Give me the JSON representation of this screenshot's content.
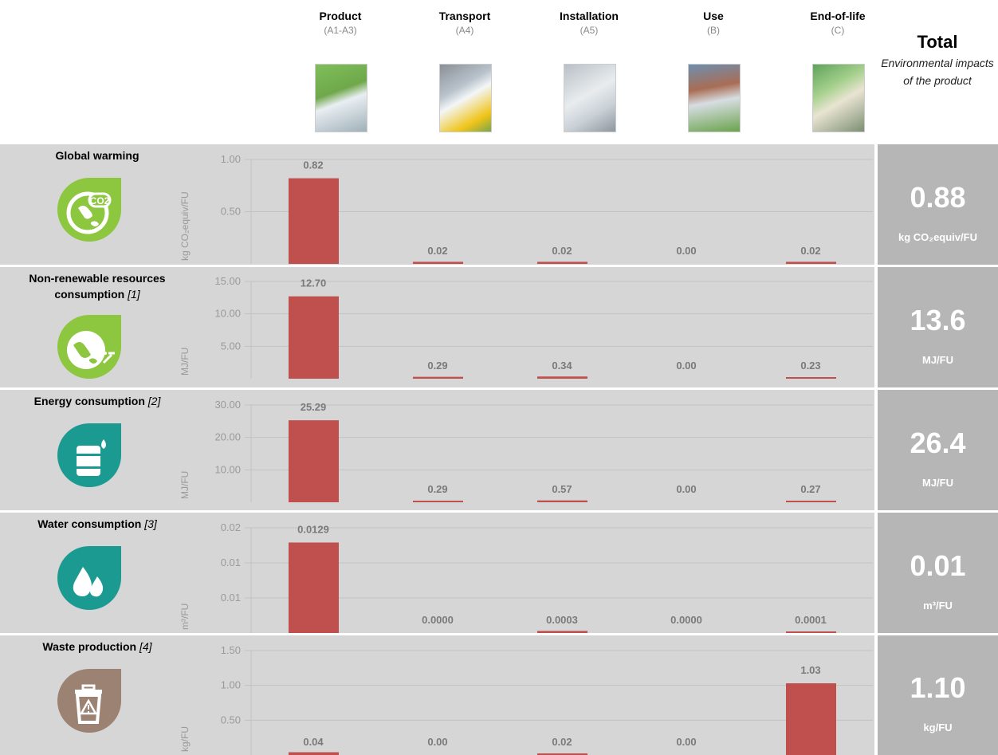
{
  "stages": [
    {
      "name": "Product",
      "code": "(A1-A3)",
      "image": "product-stage-illustration"
    },
    {
      "name": "Transport",
      "code": "(A4)",
      "image": "transport-truck-illustration"
    },
    {
      "name": "Installation",
      "code": "(A5)",
      "image": "installation-illustration"
    },
    {
      "name": "Use",
      "code": "(B)",
      "image": "house-use-illustration"
    },
    {
      "name": "End-of-life",
      "code": "(C)",
      "image": "end-of-life-illustration"
    }
  ],
  "total": {
    "title": "Total",
    "subtitle": "Environmental impacts of the product"
  },
  "colors": {
    "bar": "#c0504d",
    "panel": "#d6d6d6",
    "total_panel": "#b6b6b6",
    "green": "#8dc63f",
    "teal": "#1a9a91",
    "brown": "#9b8273"
  },
  "chart_data": [
    {
      "type": "bar",
      "title": "Global warming",
      "note": "",
      "icon": "co2-globe-icon",
      "categories": [
        "Product",
        "Transport",
        "Installation",
        "Use",
        "End-of-life"
      ],
      "values": [
        0.82,
        0.02,
        0.02,
        0.0,
        0.02
      ],
      "labels": [
        "0.82",
        "0.02",
        "0.02",
        "0.00",
        "0.02"
      ],
      "ylabel": "kg CO₂equiv/FU",
      "yticks": [
        "1.00",
        "0.50"
      ],
      "yticks_vals": [
        1.0,
        0.5
      ],
      "ylim": [
        0,
        1.0
      ],
      "grid": true,
      "total": "0.88",
      "total_unit": "kg CO₂equiv/FU"
    },
    {
      "type": "bar",
      "title": "Non-renewable resources consumption",
      "note": "[1]",
      "icon": "earth-mining-icon",
      "categories": [
        "Product",
        "Transport",
        "Installation",
        "Use",
        "End-of-life"
      ],
      "values": [
        12.7,
        0.29,
        0.34,
        0.0,
        0.23
      ],
      "labels": [
        "12.70",
        "0.29",
        "0.34",
        "0.00",
        "0.23"
      ],
      "ylabel": "MJ/FU",
      "yticks": [
        "15.00",
        "10.00",
        "5.00"
      ],
      "yticks_vals": [
        15,
        10,
        5
      ],
      "ylim": [
        0,
        15
      ],
      "grid": true,
      "total": "13.6",
      "total_unit": "MJ/FU"
    },
    {
      "type": "bar",
      "title": "Energy consumption",
      "note": "[2]",
      "icon": "fuel-barrel-icon",
      "categories": [
        "Product",
        "Transport",
        "Installation",
        "Use",
        "End-of-life"
      ],
      "values": [
        25.29,
        0.29,
        0.57,
        0.0,
        0.27
      ],
      "labels": [
        "25.29",
        "0.29",
        "0.57",
        "0.00",
        "0.27"
      ],
      "ylabel": "MJ/FU",
      "yticks": [
        "30.00",
        "20.00",
        "10.00"
      ],
      "yticks_vals": [
        30,
        20,
        10
      ],
      "ylim": [
        0,
        30
      ],
      "grid": true,
      "total": "26.4",
      "total_unit": "MJ/FU"
    },
    {
      "type": "bar",
      "title": "Water consumption",
      "note": "[3]",
      "icon": "water-drops-icon",
      "categories": [
        "Product",
        "Transport",
        "Installation",
        "Use",
        "End-of-life"
      ],
      "values": [
        0.0129,
        0.0,
        0.0003,
        0.0,
        0.0001
      ],
      "labels": [
        "0.0129",
        "0.0000",
        "0.0003",
        "0.0000",
        "0.0001"
      ],
      "ylabel": "m³/FU",
      "yticks": [
        "0.02",
        "0.01",
        "0.01"
      ],
      "yticks_vals": [
        0.015,
        0.01,
        0.005
      ],
      "ylim": [
        0,
        0.015
      ],
      "grid": true,
      "total": "0.01",
      "total_unit": "m³/FU"
    },
    {
      "type": "bar",
      "title": "Waste production",
      "note": "[4]",
      "icon": "trash-bin-icon",
      "categories": [
        "Product",
        "Transport",
        "Installation",
        "Use",
        "End-of-life"
      ],
      "values": [
        0.04,
        0.0,
        0.02,
        0.0,
        1.03
      ],
      "labels": [
        "0.04",
        "0.00",
        "0.02",
        "0.00",
        "1.03"
      ],
      "ylabel": "kg/FU",
      "yticks": [
        "1.50",
        "1.00",
        "0.50"
      ],
      "yticks_vals": [
        1.5,
        1.0,
        0.5
      ],
      "ylim": [
        0,
        1.5
      ],
      "grid": true,
      "total": "1.10",
      "total_unit": "kg/FU"
    }
  ]
}
